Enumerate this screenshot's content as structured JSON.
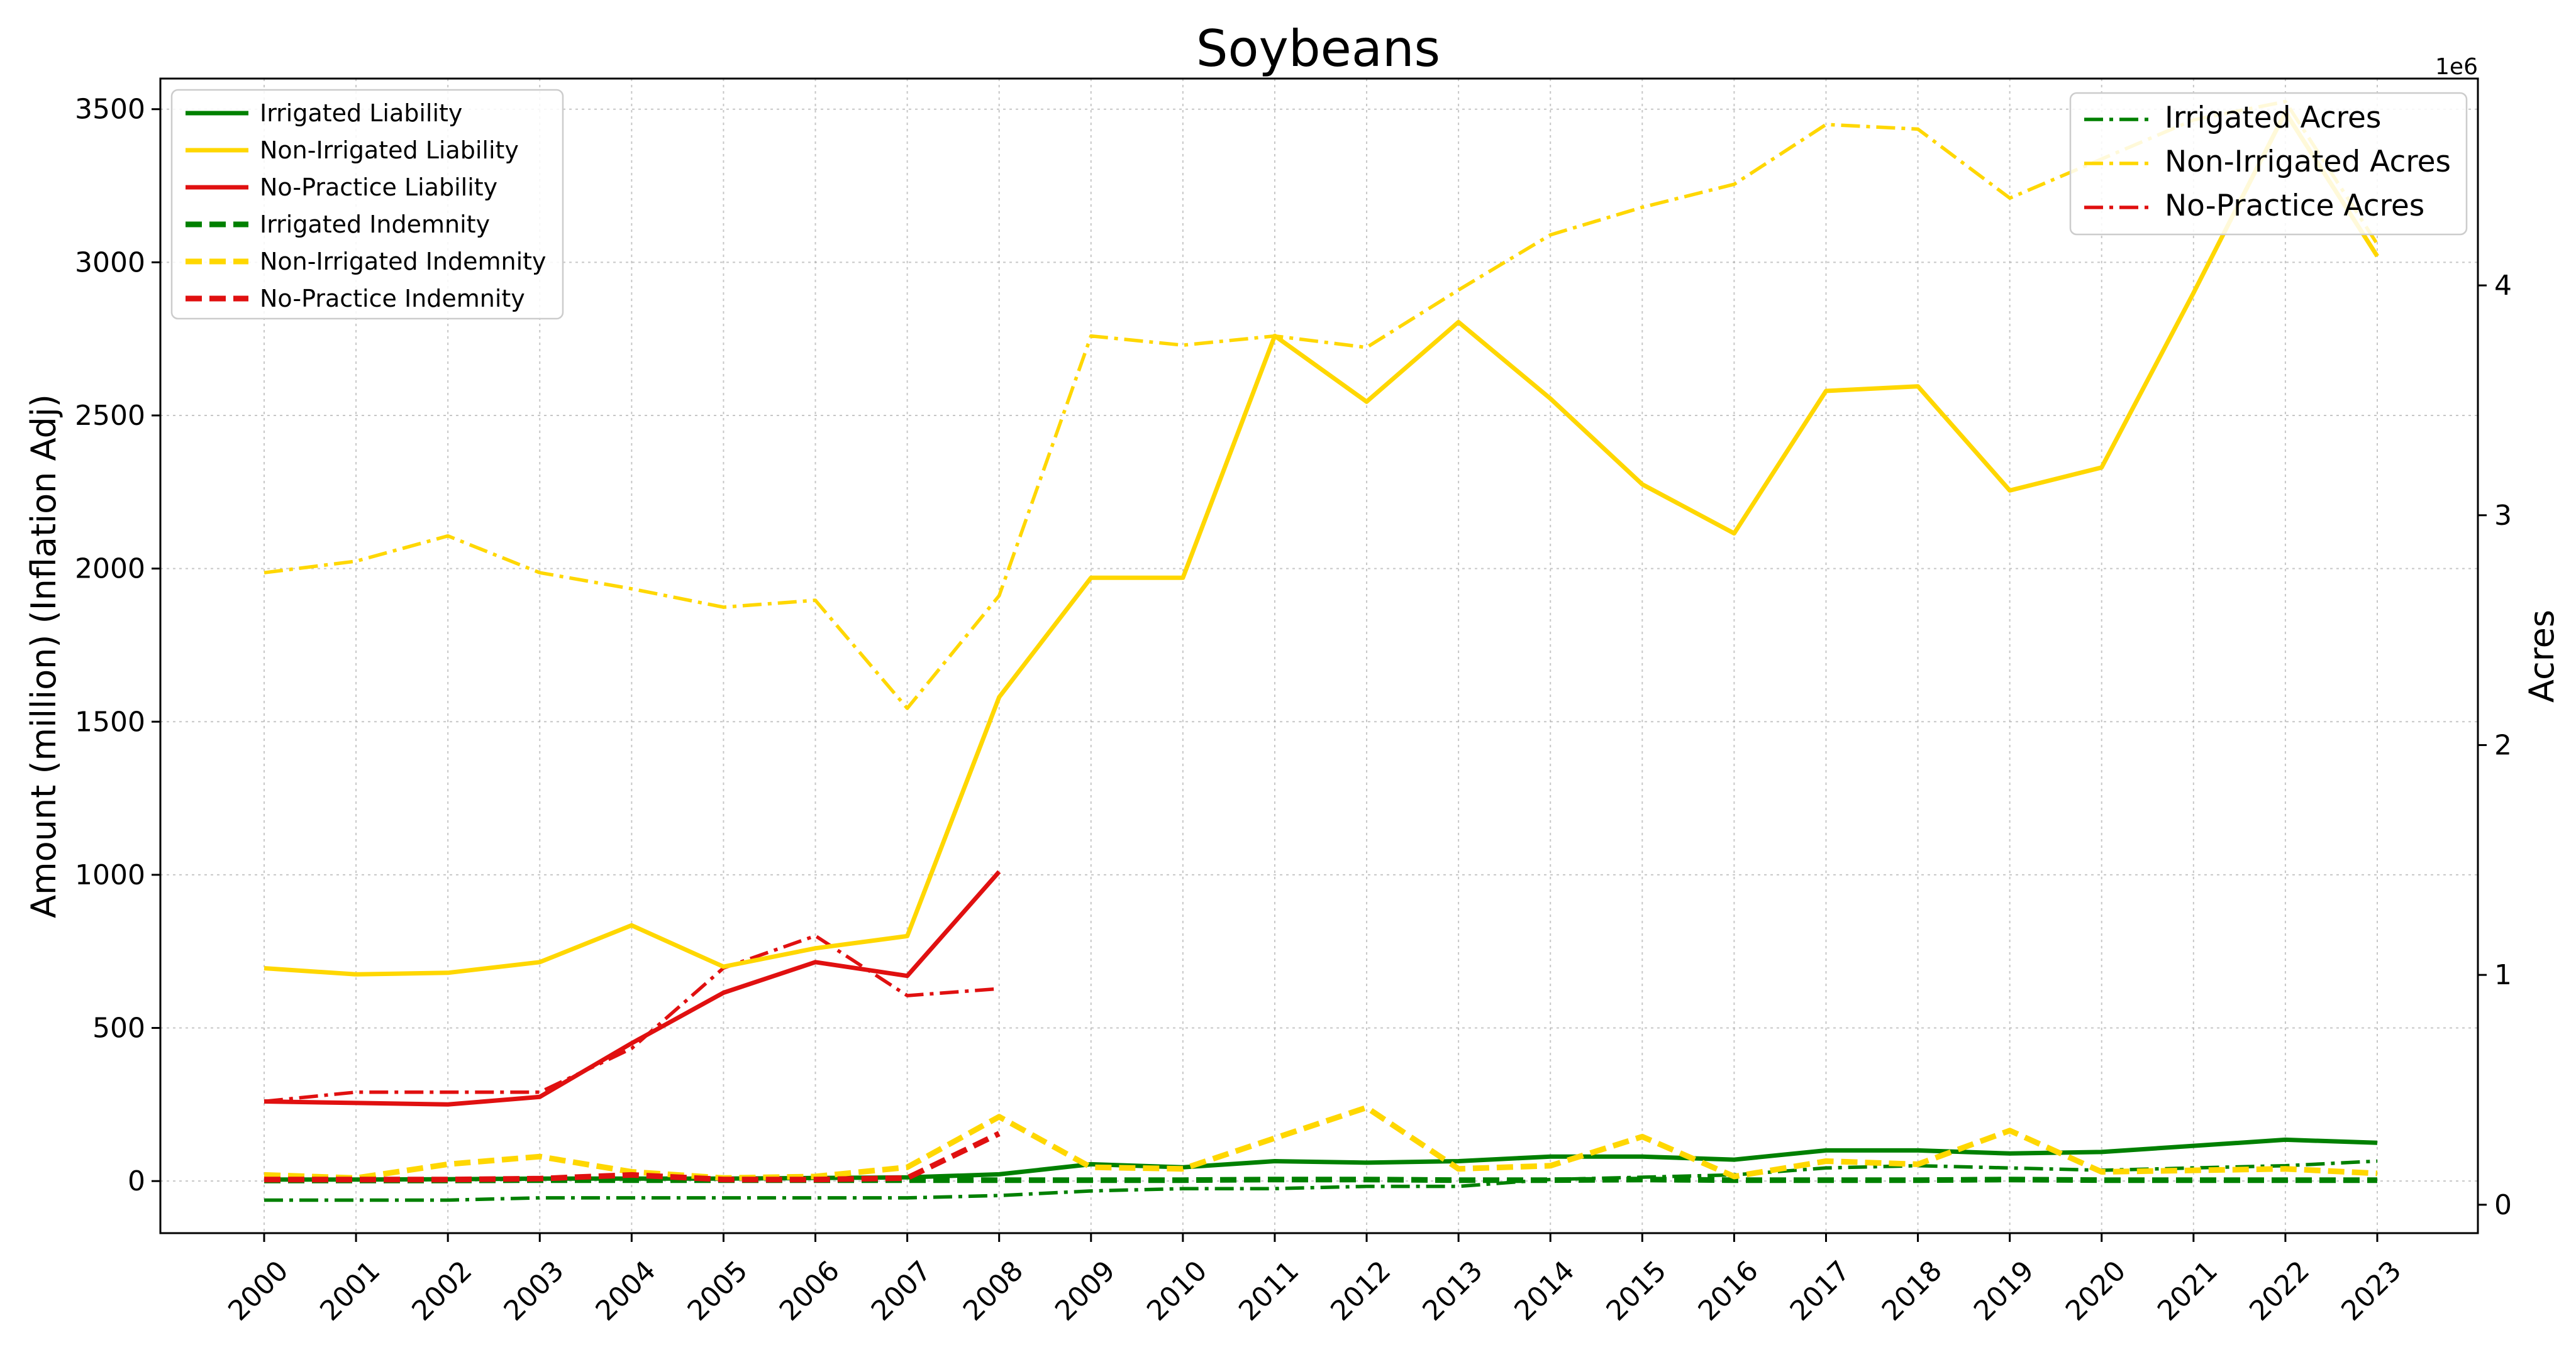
{
  "chart_data": {
    "type": "line",
    "title": "Soybeans",
    "ylabel_left": "Amount (million) (Inflation Adj)",
    "ylabel_right": "Acres",
    "right_axis_multiplier": "1e6",
    "x": [
      "2000",
      "2001",
      "2002",
      "2003",
      "2004",
      "2005",
      "2006",
      "2007",
      "2008",
      "2009",
      "2010",
      "2011",
      "2012",
      "2013",
      "2014",
      "2015",
      "2016",
      "2017",
      "2018",
      "2019",
      "2020",
      "2021",
      "2022",
      "2023"
    ],
    "ylim_left": [
      -170,
      3600
    ],
    "ylim_right": [
      -0.1235,
      4.9
    ],
    "yticks_left": [
      0,
      500,
      1000,
      1500,
      2000,
      2500,
      3000,
      3500
    ],
    "yticks_right": [
      0,
      1,
      2,
      3,
      4
    ],
    "grid": true,
    "legend_left_placement": "top-left",
    "legend_right_placement": "top-right",
    "colors": {
      "irrigated": "#008000",
      "non_irrigated": "#ffd700",
      "no_practice": "#e01010"
    },
    "series_left": [
      {
        "name": "Irrigated Liability",
        "color": "#008000",
        "style": "solid",
        "values": [
          5,
          5,
          6,
          8,
          8,
          8,
          10,
          12,
          22,
          55,
          45,
          65,
          60,
          65,
          80,
          80,
          70,
          100,
          100,
          90,
          95,
          115,
          135,
          125
        ]
      },
      {
        "name": "Non-Irrigated Liability",
        "color": "#ffd700",
        "style": "solid",
        "values": [
          695,
          675,
          680,
          715,
          835,
          700,
          760,
          800,
          1580,
          1970,
          1970,
          2760,
          2545,
          2805,
          2555,
          2275,
          2115,
          2580,
          2595,
          2255,
          2330,
          2900,
          3490,
          3020
        ]
      },
      {
        "name": "No-Practice Liability",
        "color": "#e01010",
        "style": "solid",
        "values": [
          260,
          255,
          250,
          275,
          450,
          615,
          715,
          670,
          1010,
          null,
          null,
          null,
          null,
          null,
          null,
          null,
          null,
          null,
          null,
          null,
          null,
          null,
          null,
          null
        ]
      },
      {
        "name": "Irrigated Indemnity",
        "color": "#008000",
        "style": "dashed",
        "values": [
          2,
          2,
          2,
          3,
          3,
          3,
          3,
          3,
          3,
          3,
          3,
          5,
          5,
          3,
          3,
          5,
          3,
          3,
          3,
          5,
          3,
          3,
          3,
          3
        ]
      },
      {
        "name": "Non-Irrigated Indemnity",
        "color": "#ffd700",
        "style": "dashed",
        "values": [
          20,
          10,
          55,
          80,
          30,
          10,
          15,
          45,
          210,
          45,
          40,
          140,
          240,
          40,
          50,
          145,
          15,
          65,
          55,
          165,
          30,
          35,
          40,
          25
        ]
      },
      {
        "name": "No-Practice Indemnity",
        "color": "#e01010",
        "style": "dashed",
        "values": [
          5,
          5,
          5,
          8,
          20,
          5,
          5,
          10,
          155,
          null,
          null,
          null,
          null,
          null,
          null,
          null,
          null,
          null,
          null,
          null,
          null,
          null,
          null,
          null
        ]
      }
    ],
    "series_right": [
      {
        "name": "Irrigated Acres",
        "color": "#008000",
        "style": "dashdot",
        "values": [
          0.02,
          0.02,
          0.02,
          0.03,
          0.03,
          0.03,
          0.03,
          0.03,
          0.04,
          0.06,
          0.07,
          0.07,
          0.08,
          0.08,
          0.11,
          0.12,
          0.13,
          0.16,
          0.17,
          0.16,
          0.15,
          0.16,
          0.17,
          0.19
        ]
      },
      {
        "name": "Non-Irrigated Acres",
        "color": "#ffd700",
        "style": "dashdot",
        "values": [
          2.75,
          2.8,
          2.91,
          2.75,
          2.68,
          2.6,
          2.63,
          2.16,
          2.65,
          3.78,
          3.74,
          3.78,
          3.73,
          3.98,
          4.22,
          4.34,
          4.44,
          4.7,
          4.68,
          4.38,
          4.55,
          4.72,
          4.8,
          4.18
        ]
      },
      {
        "name": "No-Practice Acres",
        "color": "#e01010",
        "style": "dashdot",
        "values": [
          0.45,
          0.49,
          0.49,
          0.49,
          0.68,
          1.03,
          1.17,
          0.91,
          0.94,
          null,
          null,
          null,
          null,
          null,
          null,
          null,
          null,
          null,
          null,
          null,
          null,
          null,
          null,
          null
        ]
      }
    ]
  }
}
